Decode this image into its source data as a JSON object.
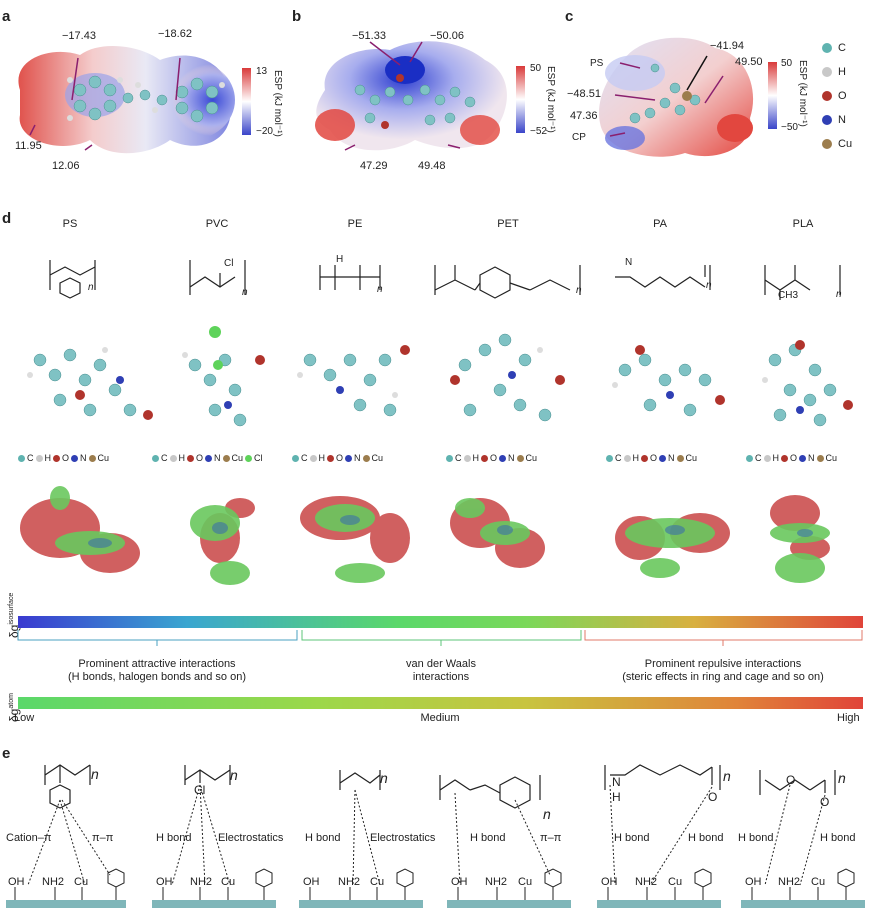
{
  "panels": {
    "a": {
      "label": "a",
      "values": [
        "−17.43",
        "−18.62",
        "11.95",
        "12.06"
      ],
      "colorbar": {
        "max": "13",
        "min": "−20",
        "title": "ESP (kJ mol⁻¹)"
      }
    },
    "b": {
      "label": "b",
      "values": [
        "−51.33",
        "−50.06",
        "47.29",
        "49.48"
      ],
      "colorbar": {
        "max": "50",
        "min": "−52",
        "title": "ESP (kJ mol⁻¹)"
      }
    },
    "c": {
      "label": "c",
      "values": [
        "−41.94",
        "49.50",
        "−48.51",
        "47.36"
      ],
      "tags": [
        "PS",
        "CP"
      ],
      "colorbar": {
        "max": "50",
        "min": "−50",
        "title": "ESP (kJ mol⁻¹)"
      },
      "legend": [
        {
          "symbol": "C",
          "color": "#5fb3b0"
        },
        {
          "symbol": "H",
          "color": "#c8c8c8"
        },
        {
          "symbol": "O",
          "color": "#b0342c"
        },
        {
          "symbol": "N",
          "color": "#2f3fb4"
        },
        {
          "symbol": "Cu",
          "color": "#9c7d4d"
        }
      ]
    },
    "d": {
      "label": "d",
      "polymers": [
        {
          "name": "PS",
          "atoms": [
            "C",
            "H",
            "O",
            "N",
            "Cu"
          ]
        },
        {
          "name": "PVC",
          "atoms": [
            "C",
            "H",
            "O",
            "N",
            "Cu",
            "Cl"
          ],
          "label_atom": "Cl"
        },
        {
          "name": "PE",
          "atoms": [
            "C",
            "H",
            "O",
            "N",
            "Cu"
          ],
          "label_atom": "H"
        },
        {
          "name": "PET",
          "atoms": [
            "C",
            "H",
            "O",
            "N",
            "Cu"
          ]
        },
        {
          "name": "PA",
          "atoms": [
            "C",
            "H",
            "O",
            "N",
            "Cu"
          ],
          "label_atom": "N"
        },
        {
          "name": "PLA",
          "atoms": [
            "C",
            "H",
            "O",
            "N",
            "Cu"
          ],
          "label_atom": "CH3"
        }
      ],
      "subscript_n": "n",
      "atom_colors": {
        "C": "#5fb3b0",
        "H": "#c8c8c8",
        "O": "#b0342c",
        "N": "#2f3fb4",
        "Cu": "#9c7d4d",
        "Cl": "#5ed35a"
      },
      "isosurface_bar_label": "δg",
      "isosurface_bar_sup": "isosurface",
      "atom_bar_label": "δg",
      "atom_bar_sup": "atom",
      "regions": [
        {
          "line1": "Prominent attractive interactions",
          "line2": "(H bonds, halogen bonds and so on)"
        },
        {
          "line1": "van der Waals",
          "line2": "interactions"
        },
        {
          "line1": "Prominent repulsive interactions",
          "line2": "(steric effects in ring and cage and so on)"
        }
      ],
      "scale": {
        "low": "Low",
        "medium": "Medium",
        "high": "High"
      }
    },
    "e": {
      "label": "e",
      "interaction_labels": {
        "ps": [
          "Cation–π",
          "π–π"
        ],
        "pvc": [
          "H bond",
          "Electrostatics"
        ],
        "pe": [
          "H bond",
          "Electrostatics"
        ],
        "pet": [
          "H bond",
          "π–π"
        ],
        "pa": [
          "H bond",
          "H bond"
        ],
        "pla": [
          "H bond",
          "H bond"
        ]
      },
      "surface_groups": [
        "OH",
        "NH2",
        "Cu"
      ],
      "atom_labels": {
        "cl": "Cl",
        "o": "O",
        "n": "N",
        "h": "H",
        "n_sub": "n"
      }
    }
  }
}
